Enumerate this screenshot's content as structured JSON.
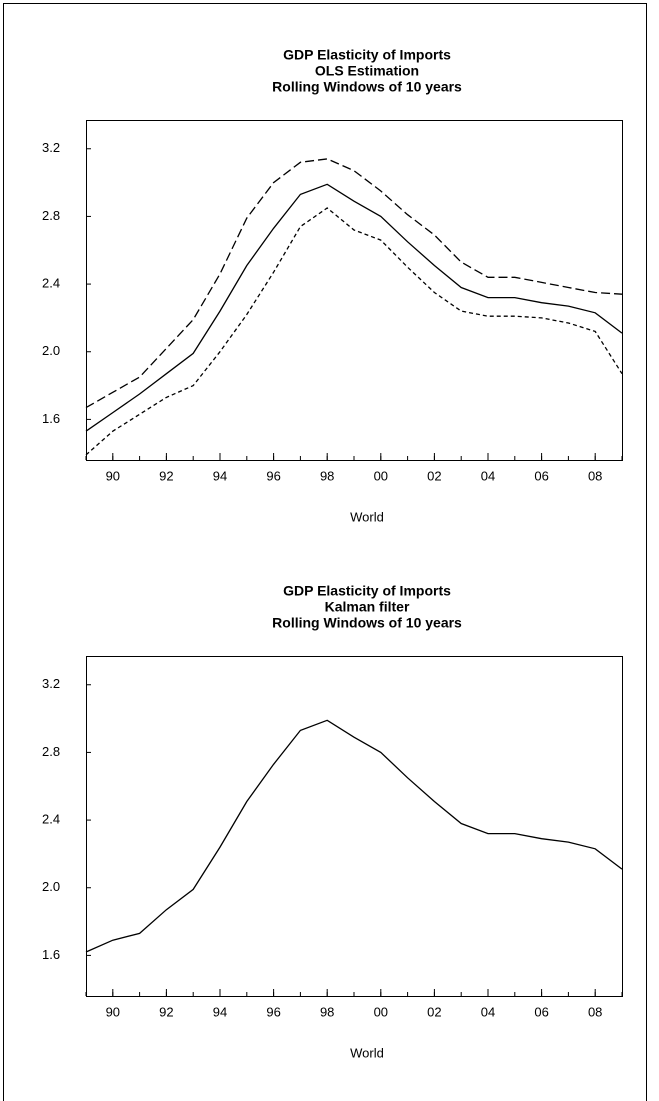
{
  "chart_data": [
    {
      "type": "line",
      "title": [
        "GDP Elasticity of Imports",
        "OLS Estimation",
        "Rolling Windows of 10 years"
      ],
      "xlabel": "World",
      "x": [
        1989,
        1990,
        1991,
        1992,
        1993,
        1994,
        1995,
        1996,
        1997,
        1998,
        1999,
        2000,
        2001,
        2002,
        2003,
        2004,
        2005,
        2006,
        2007,
        2008,
        2009
      ],
      "series": [
        {
          "color": "#000000",
          "dash": "solid",
          "values": [
            1.53,
            1.64,
            1.75,
            1.87,
            1.99,
            2.24,
            2.51,
            2.73,
            2.93,
            2.99,
            2.89,
            2.8,
            2.65,
            2.51,
            2.38,
            2.32,
            2.32,
            2.29,
            2.27,
            2.23,
            2.11
          ]
        },
        {
          "color": "#000000",
          "dash": "long-dash",
          "values": [
            1.67,
            1.76,
            1.85,
            2.02,
            2.19,
            2.46,
            2.79,
            3.0,
            3.12,
            3.14,
            3.07,
            2.95,
            2.81,
            2.69,
            2.53,
            2.44,
            2.44,
            2.41,
            2.38,
            2.35,
            2.34
          ]
        },
        {
          "color": "#000000",
          "dash": "short-dash",
          "values": [
            1.39,
            1.53,
            1.63,
            1.73,
            1.8,
            2.0,
            2.22,
            2.47,
            2.74,
            2.85,
            2.72,
            2.66,
            2.5,
            2.35,
            2.24,
            2.21,
            2.21,
            2.2,
            2.17,
            2.12,
            1.87
          ]
        }
      ],
      "xlim": [
        1989,
        2009
      ],
      "xticks": [
        {
          "value": 1990,
          "label": "90"
        },
        {
          "value": 1992,
          "label": "92"
        },
        {
          "value": 1994,
          "label": "94"
        },
        {
          "value": 1996,
          "label": "96"
        },
        {
          "value": 1998,
          "label": "98"
        },
        {
          "value": 2000,
          "label": "00"
        },
        {
          "value": 2002,
          "label": "02"
        },
        {
          "value": 2004,
          "label": "04"
        },
        {
          "value": 2006,
          "label": "06"
        },
        {
          "value": 2008,
          "label": "08"
        }
      ],
      "ylim": [
        1.36,
        3.37
      ],
      "yticks": [
        {
          "value": 1.6,
          "label": "1.6"
        },
        {
          "value": 2.0,
          "label": "2.0"
        },
        {
          "value": 2.4,
          "label": "2.4"
        },
        {
          "value": 2.8,
          "label": "2.8"
        },
        {
          "value": 3.2,
          "label": "3.2"
        }
      ],
      "grid": false
    },
    {
      "type": "line",
      "title": [
        "GDP Elasticity of Imports",
        "Kalman filter",
        "Rolling Windows of 10 years"
      ],
      "xlabel": "World",
      "x": [
        1989,
        1990,
        1991,
        1992,
        1993,
        1994,
        1995,
        1996,
        1997,
        1998,
        1999,
        2000,
        2001,
        2002,
        2003,
        2004,
        2005,
        2006,
        2007,
        2008,
        2009
      ],
      "series": [
        {
          "color": "#000000",
          "dash": "solid",
          "values": [
            1.62,
            1.69,
            1.73,
            1.87,
            1.99,
            2.24,
            2.51,
            2.73,
            2.93,
            2.99,
            2.89,
            2.8,
            2.65,
            2.51,
            2.38,
            2.32,
            2.32,
            2.29,
            2.27,
            2.23,
            2.11
          ]
        }
      ],
      "xlim": [
        1989,
        2009
      ],
      "xticks": [
        {
          "value": 1990,
          "label": "90"
        },
        {
          "value": 1992,
          "label": "92"
        },
        {
          "value": 1994,
          "label": "94"
        },
        {
          "value": 1996,
          "label": "96"
        },
        {
          "value": 1998,
          "label": "98"
        },
        {
          "value": 2000,
          "label": "00"
        },
        {
          "value": 2002,
          "label": "02"
        },
        {
          "value": 2004,
          "label": "04"
        },
        {
          "value": 2006,
          "label": "06"
        },
        {
          "value": 2008,
          "label": "08"
        }
      ],
      "ylim": [
        1.36,
        3.37
      ],
      "yticks": [
        {
          "value": 1.6,
          "label": "1.6"
        },
        {
          "value": 2.0,
          "label": "2.0"
        },
        {
          "value": 2.4,
          "label": "2.4"
        },
        {
          "value": 2.8,
          "label": "2.8"
        },
        {
          "value": 3.2,
          "label": "3.2"
        }
      ],
      "grid": false
    }
  ]
}
